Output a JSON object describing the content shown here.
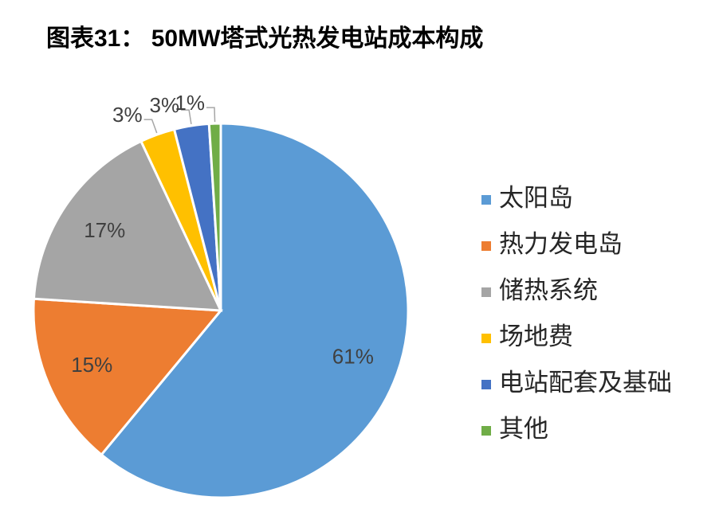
{
  "chart_data": {
    "type": "pie",
    "title": "图表31： 50MW塔式光热发电站成本构成",
    "categories": [
      "太阳岛",
      "热力发电岛",
      "储热系统",
      "场地费",
      "电站配套及基础",
      "其他"
    ],
    "values": [
      61,
      15,
      17,
      3,
      3,
      1
    ],
    "value_labels": [
      "61%",
      "15%",
      "17%",
      "3%",
      "3%",
      "1%"
    ],
    "colors": [
      "#5b9bd5",
      "#ed7d31",
      "#a5a5a5",
      "#ffc000",
      "#4472c4",
      "#70ad47"
    ],
    "legend": "right"
  }
}
